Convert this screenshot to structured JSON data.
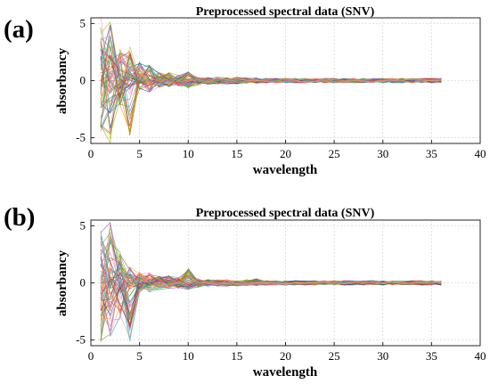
{
  "chart_data": [
    {
      "panel_label": "(a)",
      "type": "line",
      "title": "Preprocessed spectral data (SNV)",
      "xlabel": "wavelength",
      "ylabel": "absorbancy",
      "xlim": [
        0,
        40
      ],
      "ylim": [
        -5.5,
        5.5
      ],
      "xticks": [
        0,
        5,
        10,
        15,
        20,
        25,
        30,
        35,
        40
      ],
      "yticks": [
        -5,
        0,
        5
      ],
      "grid": true,
      "x": [
        1,
        2,
        3,
        4,
        5,
        6,
        7,
        8,
        9,
        10,
        11,
        12,
        13,
        14,
        15,
        16,
        17,
        18,
        19,
        20,
        21,
        22,
        23,
        24,
        25,
        26,
        27,
        28,
        29,
        30,
        31,
        32,
        33,
        34,
        35,
        36
      ],
      "envelope_upper": [
        5.6,
        5.2,
        2.8,
        3.0,
        1.6,
        1.4,
        0.7,
        0.8,
        0.5,
        0.8,
        0.3,
        0.3,
        0.3,
        0.25,
        0.3,
        0.25,
        0.25,
        0.2,
        0.2,
        0.2,
        0.2,
        0.2,
        0.2,
        0.2,
        0.2,
        0.2,
        0.2,
        0.2,
        0.2,
        0.2,
        0.2,
        0.2,
        0.2,
        0.2,
        0.2,
        0.2
      ],
      "envelope_lower": [
        -4.6,
        -5.6,
        -2.3,
        -5.0,
        -0.9,
        -1.0,
        -0.6,
        -0.6,
        -0.5,
        -0.7,
        -0.4,
        -0.35,
        -0.3,
        -0.3,
        -0.3,
        -0.25,
        -0.25,
        -0.2,
        -0.2,
        -0.2,
        -0.2,
        -0.2,
        -0.2,
        -0.2,
        -0.2,
        -0.2,
        -0.2,
        -0.2,
        -0.2,
        -0.2,
        -0.2,
        -0.2,
        -0.2,
        -0.2,
        -0.2,
        -0.2
      ],
      "series_count": 60
    },
    {
      "panel_label": "(b)",
      "type": "line",
      "title": "Preprocessed spectral data (SNV)",
      "xlabel": "wavelength",
      "ylabel": "absorbancy",
      "xlim": [
        0,
        40
      ],
      "ylim": [
        -5.5,
        5.5
      ],
      "xticks": [
        0,
        5,
        10,
        15,
        20,
        25,
        30,
        35,
        40
      ],
      "yticks": [
        -5,
        0,
        5
      ],
      "grid": true,
      "x": [
        1,
        2,
        3,
        4,
        5,
        6,
        7,
        8,
        9,
        10,
        11,
        12,
        13,
        14,
        15,
        16,
        17,
        18,
        19,
        20,
        21,
        22,
        23,
        24,
        25,
        26,
        27,
        28,
        29,
        30,
        31,
        32,
        33,
        34,
        35,
        36
      ],
      "envelope_upper": [
        5.6,
        5.4,
        2.8,
        1.4,
        1.0,
        0.9,
        0.6,
        0.7,
        0.5,
        1.4,
        0.4,
        0.3,
        0.3,
        0.3,
        0.25,
        0.3,
        0.4,
        0.2,
        0.2,
        0.2,
        0.2,
        0.2,
        0.2,
        0.2,
        0.2,
        0.2,
        0.2,
        0.2,
        0.2,
        0.2,
        0.2,
        0.2,
        0.2,
        0.2,
        0.2,
        0.2
      ],
      "envelope_lower": [
        -5.5,
        -4.8,
        -3.2,
        -5.3,
        -0.9,
        -0.8,
        -0.6,
        -0.6,
        -0.5,
        -0.6,
        -0.4,
        -0.35,
        -0.3,
        -0.3,
        -0.3,
        -0.25,
        -0.25,
        -0.2,
        -0.2,
        -0.2,
        -0.2,
        -0.2,
        -0.2,
        -0.2,
        -0.2,
        -0.2,
        -0.2,
        -0.2,
        -0.2,
        -0.2,
        -0.2,
        -0.2,
        -0.2,
        -0.2,
        -0.2,
        -0.2
      ],
      "series_count": 60
    }
  ],
  "palette": [
    "#e41a1c",
    "#377eb8",
    "#4daf4a",
    "#984ea3",
    "#ff7f00",
    "#a6a600",
    "#a65628",
    "#f781bf",
    "#17becf",
    "#1f3c88",
    "#2ca02c",
    "#d62728",
    "#9467bd",
    "#8c564b",
    "#e377c2",
    "#7f7f7f",
    "#bcbd22",
    "#ff9896",
    "#66c2a5",
    "#fc8d62"
  ]
}
